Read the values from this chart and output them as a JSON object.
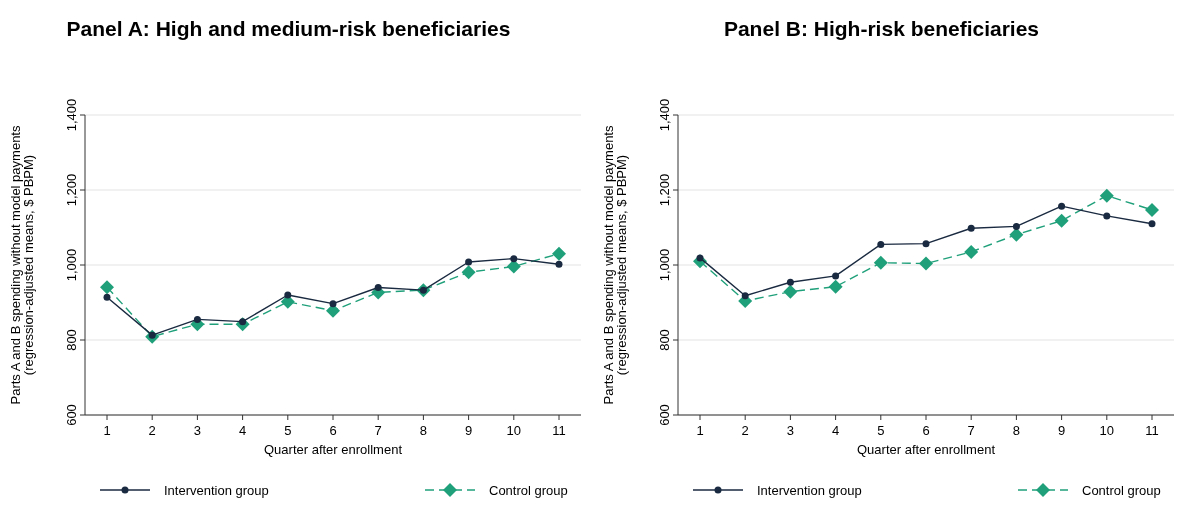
{
  "chart_data": [
    {
      "type": "line",
      "title": "Panel A: High and medium-risk beneficiaries",
      "xlabel": "Quarter after enrollment",
      "ylabel": "Parts A and B spending without model payments\n(regression-adjusted means, $ PBPM)",
      "categories": [
        "1",
        "2",
        "3",
        "4",
        "5",
        "6",
        "7",
        "8",
        "9",
        "10",
        "11"
      ],
      "series": [
        {
          "name": "Intervention group",
          "color": "#1a2a40",
          "marker": "circle",
          "line_style": "solid",
          "values": [
            914,
            813,
            855,
            849,
            920,
            897,
            940,
            933,
            1008,
            1017,
            1002
          ]
        },
        {
          "name": "Control group",
          "color": "#20a07a",
          "marker": "diamond",
          "line_style": "dashed",
          "values": [
            941,
            809,
            842,
            842,
            902,
            878,
            927,
            933,
            981,
            996,
            1030
          ]
        }
      ],
      "ylim": [
        600,
        1400
      ],
      "yticks": [
        {
          "value": 600,
          "label": "600"
        },
        {
          "value": 800,
          "label": "800"
        },
        {
          "value": 1000,
          "label": "1,000"
        },
        {
          "value": 1200,
          "label": "1,200"
        },
        {
          "value": 1400,
          "label": "1,400"
        }
      ],
      "grid": "y",
      "legend": "bottom"
    },
    {
      "type": "line",
      "title": "Panel B: High-risk beneficiaries",
      "xlabel": "Quarter after enrollment",
      "ylabel": "Parts A and B spending without model payments\n(regression-adjusted means, $ PBPM)",
      "categories": [
        "1",
        "2",
        "3",
        "4",
        "5",
        "6",
        "7",
        "8",
        "9",
        "10",
        "11"
      ],
      "series": [
        {
          "name": "Intervention group",
          "color": "#1a2a40",
          "marker": "circle",
          "line_style": "solid",
          "values": [
            1019,
            918,
            954,
            971,
            1055,
            1057,
            1098,
            1103,
            1157,
            1131,
            1110
          ]
        },
        {
          "name": "Control group",
          "color": "#20a07a",
          "marker": "diamond",
          "line_style": "dashed",
          "values": [
            1010,
            904,
            929,
            942,
            1006,
            1004,
            1035,
            1081,
            1118,
            1185,
            1147
          ]
        }
      ],
      "ylim": [
        600,
        1400
      ],
      "yticks": [
        {
          "value": 600,
          "label": "600"
        },
        {
          "value": 800,
          "label": "800"
        },
        {
          "value": 1000,
          "label": "1,000"
        },
        {
          "value": 1200,
          "label": "1,200"
        },
        {
          "value": 1400,
          "label": "1,400"
        }
      ],
      "grid": "y",
      "legend": "bottom"
    }
  ]
}
